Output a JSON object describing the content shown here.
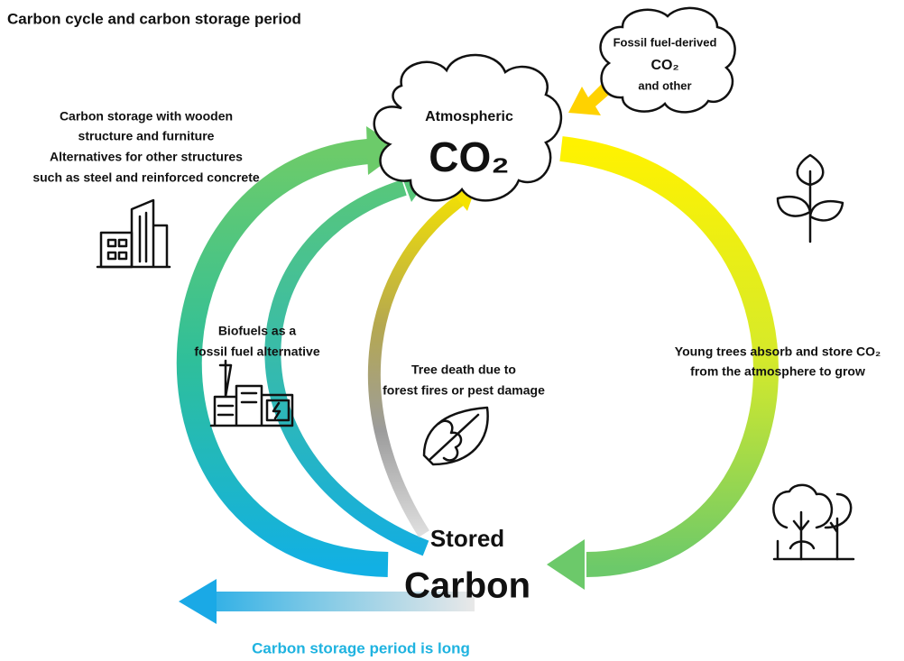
{
  "title": "Carbon cycle and carbon storage period",
  "atmosphere": {
    "label": "Atmospheric",
    "formula": "CO₂"
  },
  "fossil": {
    "lines": [
      "Fossil fuel-derived",
      "CO₂",
      "and other"
    ]
  },
  "wood_storage": {
    "lines": [
      "Carbon storage with wooden",
      "structure and furniture",
      "Alternatives for other structures",
      "such as steel and reinforced concrete"
    ]
  },
  "biofuels": {
    "lines": [
      "Biofuels as a",
      "fossil fuel alternative"
    ]
  },
  "tree_death": {
    "lines": [
      "Tree death due to",
      "forest fires or pest damage"
    ]
  },
  "young_trees": {
    "lines": [
      "Young trees absorb and store CO₂",
      "from the atmosphere to grow"
    ]
  },
  "stored_carbon": {
    "lines": [
      "Stored",
      "Carbon"
    ]
  },
  "footer": "Carbon storage period is long"
}
